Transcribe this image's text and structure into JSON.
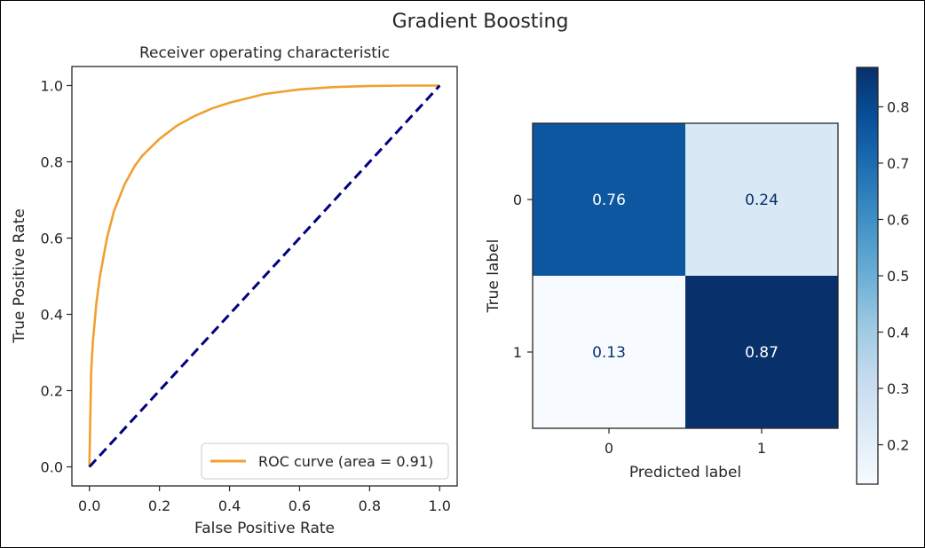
{
  "figure": {
    "suptitle": "Gradient Boosting"
  },
  "chart_data": [
    {
      "type": "line",
      "title": "Receiver operating characteristic",
      "xlabel": "False Positive Rate",
      "ylabel": "True Positive Rate",
      "xlim": [
        0.0,
        1.0
      ],
      "ylim": [
        0.0,
        1.0
      ],
      "x_ticks": [
        0.0,
        0.2,
        0.4,
        0.6,
        0.8,
        1.0
      ],
      "y_ticks": [
        0.0,
        0.2,
        0.4,
        0.6,
        0.8,
        1.0
      ],
      "x_tick_labels": [
        "0.0",
        "0.2",
        "0.4",
        "0.6",
        "0.8",
        "1.0"
      ],
      "y_tick_labels": [
        "0.0",
        "0.2",
        "0.4",
        "0.6",
        "0.8",
        "1.0"
      ],
      "grid": false,
      "legend_position": "lower-right",
      "series": [
        {
          "name": "ROC curve (area = 0.91)",
          "color": "#f0a030",
          "style": "solid",
          "x": [
            0.0,
            0.005,
            0.01,
            0.02,
            0.03,
            0.05,
            0.07,
            0.1,
            0.13,
            0.15,
            0.2,
            0.25,
            0.3,
            0.35,
            0.4,
            0.5,
            0.6,
            0.7,
            0.8,
            0.9,
            1.0
          ],
          "y": [
            0.0,
            0.25,
            0.33,
            0.43,
            0.5,
            0.6,
            0.67,
            0.74,
            0.79,
            0.815,
            0.86,
            0.895,
            0.92,
            0.94,
            0.955,
            0.978,
            0.99,
            0.996,
            0.999,
            1.0,
            1.0
          ]
        },
        {
          "name": "",
          "color": "#000080",
          "style": "dashed",
          "x": [
            0.0,
            1.0
          ],
          "y": [
            0.0,
            1.0
          ]
        }
      ]
    },
    {
      "type": "heatmap",
      "xlabel": "Predicted label",
      "ylabel": "True label",
      "x_categories": [
        "0",
        "1"
      ],
      "y_categories": [
        "0",
        "1"
      ],
      "values": [
        [
          0.76,
          0.24
        ],
        [
          0.13,
          0.87
        ]
      ],
      "value_labels": [
        [
          "0.76",
          "0.24"
        ],
        [
          "0.13",
          "0.87"
        ]
      ],
      "colormap": "Blues",
      "colorbar": {
        "min": 0.13,
        "max": 0.87,
        "ticks": [
          0.2,
          0.3,
          0.4,
          0.5,
          0.6,
          0.7,
          0.8
        ],
        "tick_labels": [
          "0.2",
          "0.3",
          "0.4",
          "0.5",
          "0.6",
          "0.7",
          "0.8"
        ]
      }
    }
  ]
}
